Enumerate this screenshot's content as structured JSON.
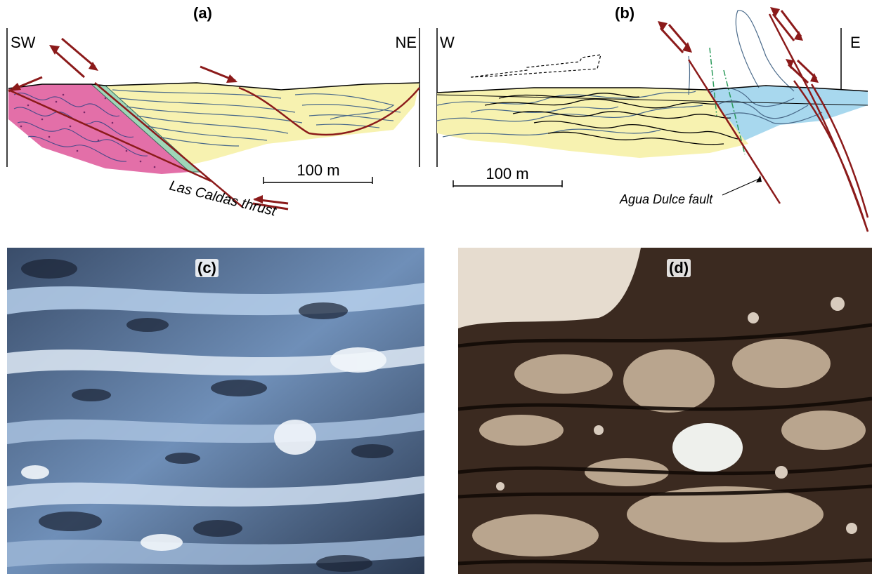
{
  "panel_a": {
    "label": "(a)",
    "left_dir": "SW",
    "right_dir": "NE",
    "scale_label": "100 m",
    "fault_label": "Las Caldas thrust"
  },
  "panel_b": {
    "label": "(b)",
    "left_dir": "W",
    "right_dir": "E",
    "scale_label": "100 m",
    "fault_label": "Agua Dulce fault"
  },
  "panel_c": {
    "label": "(c)"
  },
  "panel_d": {
    "label": "(d)"
  },
  "colors": {
    "fault": "#8b1a1a",
    "yellow_unit": "#f7f2b0",
    "pink_unit": "#e36fa8",
    "blue_unit": "#a8d8ee",
    "strata_line": "#4a6a8a",
    "green_band": "#9fd6b8"
  }
}
